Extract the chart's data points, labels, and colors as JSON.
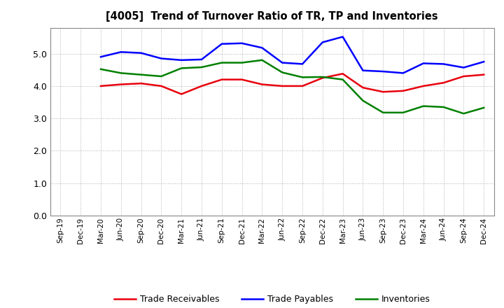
{
  "title": "[4005]  Trend of Turnover Ratio of TR, TP and Inventories",
  "x_labels": [
    "Sep-19",
    "Dec-19",
    "Mar-20",
    "Jun-20",
    "Sep-20",
    "Dec-20",
    "Mar-21",
    "Jun-21",
    "Sep-21",
    "Dec-21",
    "Mar-22",
    "Jun-22",
    "Sep-22",
    "Dec-22",
    "Mar-23",
    "Jun-23",
    "Sep-23",
    "Dec-23",
    "Mar-24",
    "Jun-24",
    "Sep-24",
    "Dec-24"
  ],
  "trade_receivables": [
    null,
    null,
    4.0,
    4.05,
    4.08,
    4.0,
    3.75,
    4.0,
    4.2,
    4.2,
    4.05,
    4.0,
    4.0,
    4.25,
    4.38,
    3.95,
    3.82,
    3.85,
    4.0,
    4.1,
    4.3,
    4.35
  ],
  "trade_payables": [
    null,
    null,
    4.9,
    5.05,
    5.02,
    4.85,
    4.8,
    4.82,
    5.3,
    5.32,
    5.18,
    4.72,
    4.68,
    5.35,
    5.52,
    4.48,
    4.45,
    4.4,
    4.7,
    4.68,
    4.57,
    4.75
  ],
  "inventories": [
    null,
    null,
    4.52,
    4.4,
    4.35,
    4.3,
    4.55,
    4.58,
    4.72,
    4.72,
    4.8,
    4.42,
    4.27,
    4.28,
    4.2,
    3.55,
    3.18,
    3.18,
    3.38,
    3.35,
    3.15,
    3.33
  ],
  "ylim": [
    0.0,
    5.8
  ],
  "yticks": [
    0.0,
    1.0,
    2.0,
    3.0,
    4.0,
    5.0
  ],
  "colors": {
    "trade_receivables": "#e8000d",
    "trade_payables": "#0000ff",
    "inventories": "#008000"
  },
  "legend_labels": [
    "Trade Receivables",
    "Trade Payables",
    "Inventories"
  ],
  "background_color": "#ffffff",
  "grid_color": "#b0b0b0"
}
